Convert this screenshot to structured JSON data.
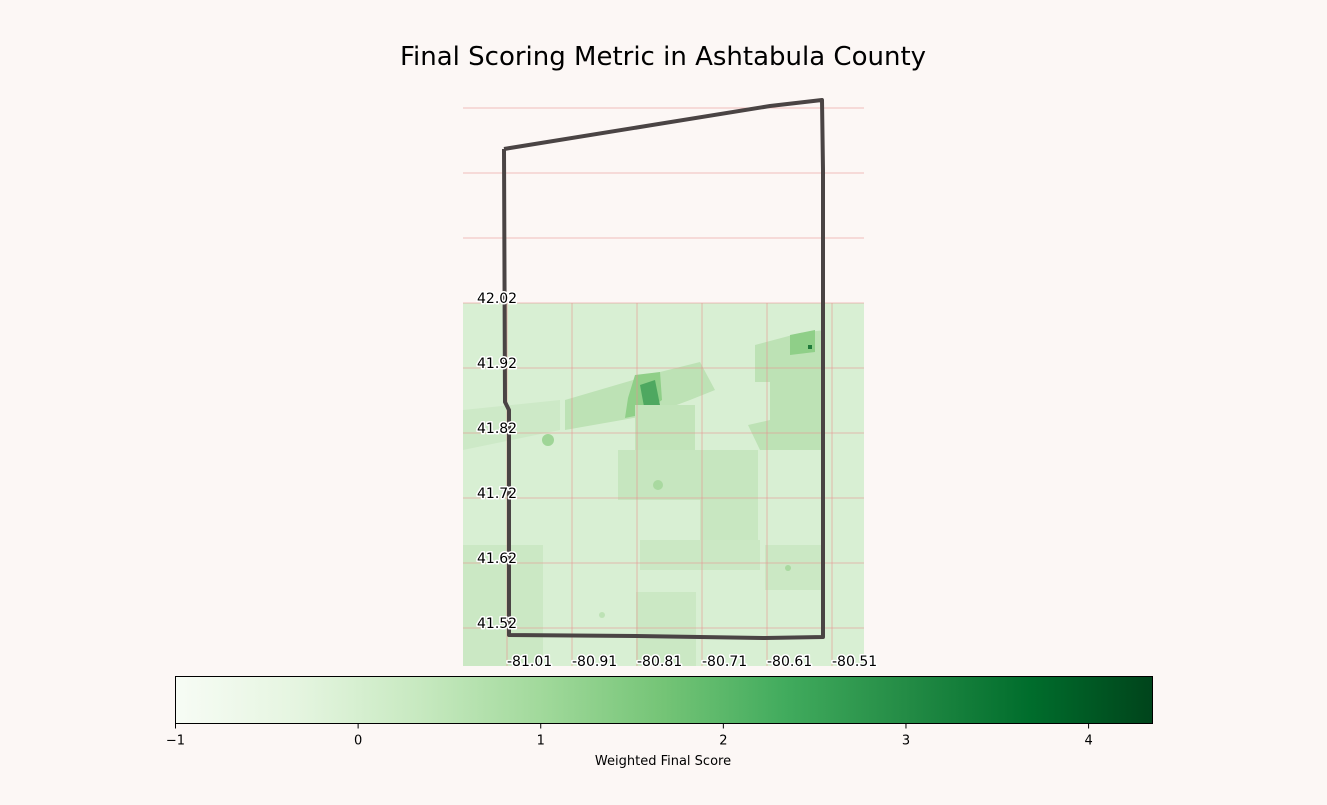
{
  "title": "Final Scoring Metric in Ashtabula County",
  "map": {
    "latitude_labels": [
      "42.02",
      "41.92",
      "41.82",
      "41.72",
      "41.62",
      "41.52"
    ],
    "longitude_labels": [
      "-81.01",
      "-80.91",
      "-80.81",
      "-80.71",
      "-80.61",
      "-80.51"
    ],
    "gridline_color": "#e8928f",
    "boundary_color": "#4a4444",
    "base_fill": "#d8efd3"
  },
  "colorbar": {
    "label": "Weighted Final Score",
    "min": -1,
    "max": 4.35,
    "ticks": [
      -1,
      0,
      1,
      2,
      3,
      4
    ],
    "tick_labels": [
      "−1",
      "0",
      "1",
      "2",
      "3",
      "4"
    ],
    "colormap": "Greens",
    "colors": [
      "#f7fcf5",
      "#e5f5e0",
      "#c7e9c0",
      "#a1d99b",
      "#74c476",
      "#41ab5d",
      "#238b45",
      "#006d2c",
      "#00441b"
    ]
  }
}
